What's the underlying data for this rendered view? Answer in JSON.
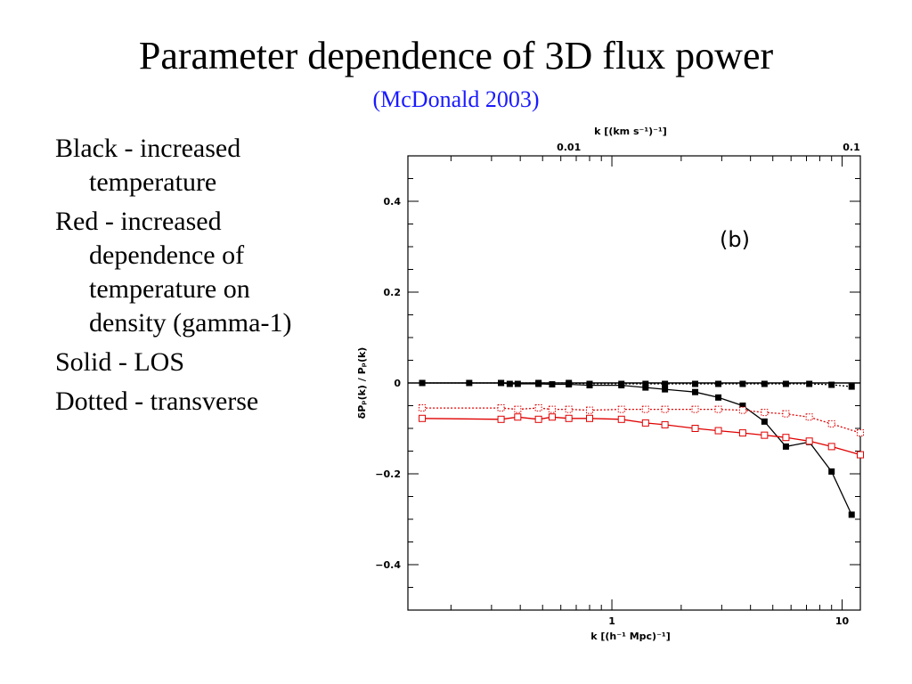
{
  "slide": {
    "title": "Parameter dependence of 3D flux power",
    "subtitle": "(McDonald 2003)"
  },
  "bullets": [
    "Black - increased temperature",
    "Red - increased dependence of temperature on density (gamma-1)",
    "Solid - LOS",
    "Dotted - transverse"
  ],
  "colors": {
    "black_series": "#000000",
    "red_series": "#e00000",
    "subtitle": "#1a1aff"
  },
  "chart_data": {
    "type": "line",
    "panel_label": "(b)",
    "xlabel": "k [(h⁻¹ Mpc)⁻¹]",
    "top_xlabel": "k [(km s⁻¹)⁻¹]",
    "ylabel": "δPₚ(k) / Pₚ(k)",
    "xscale": "log",
    "xlim": [
      0.13,
      12
    ],
    "ylim": [
      -0.5,
      0.5
    ],
    "x_tick_labels": [
      "1",
      "10"
    ],
    "top_tick_labels": [
      "0.01",
      "0.1"
    ],
    "y_tick_labels": [
      "0.4",
      "0.2",
      "0",
      "−0.2",
      "−0.4"
    ],
    "series": [
      {
        "color": "black",
        "style": "solid",
        "marker": "filled-square",
        "x": [
          0.15,
          0.24,
          0.33,
          0.36,
          0.39,
          0.48,
          0.55,
          0.65,
          0.8,
          1.1,
          1.4,
          1.7,
          2.3,
          2.9,
          3.7,
          4.6,
          5.7,
          7.2,
          9.0,
          11.0
        ],
        "y": [
          0.0,
          0.0,
          0.0,
          -0.002,
          -0.002,
          -0.002,
          -0.003,
          -0.003,
          -0.005,
          -0.005,
          -0.01,
          -0.014,
          -0.02,
          -0.032,
          -0.05,
          -0.085,
          -0.14,
          -0.13,
          -0.195,
          -0.29
        ]
      },
      {
        "color": "black",
        "style": "dotted",
        "marker": "filled-square",
        "x": [
          0.15,
          0.33,
          0.48,
          0.65,
          0.8,
          1.1,
          1.4,
          1.7,
          2.3,
          2.9,
          3.7,
          4.6,
          5.7,
          7.2,
          9.0,
          11.0
        ],
        "y": [
          0.0,
          0.0,
          0.0,
          0.0,
          -0.002,
          -0.002,
          -0.002,
          -0.002,
          -0.002,
          -0.002,
          -0.002,
          -0.002,
          -0.002,
          -0.002,
          -0.004,
          -0.008
        ]
      },
      {
        "color": "red",
        "style": "solid",
        "marker": "open-square",
        "x": [
          0.15,
          0.33,
          0.39,
          0.48,
          0.55,
          0.65,
          0.8,
          1.1,
          1.4,
          1.7,
          2.3,
          2.9,
          3.7,
          4.6,
          5.7,
          7.2,
          9.0,
          12.0
        ],
        "y": [
          -0.078,
          -0.08,
          -0.075,
          -0.08,
          -0.075,
          -0.078,
          -0.078,
          -0.08,
          -0.088,
          -0.092,
          -0.1,
          -0.105,
          -0.11,
          -0.115,
          -0.12,
          -0.128,
          -0.14,
          -0.158
        ]
      },
      {
        "color": "red",
        "style": "dotted",
        "marker": "open-square",
        "x": [
          0.15,
          0.33,
          0.39,
          0.48,
          0.55,
          0.65,
          0.8,
          1.1,
          1.4,
          1.7,
          2.3,
          2.9,
          3.7,
          4.6,
          5.7,
          7.2,
          9.0,
          12.0
        ],
        "y": [
          -0.055,
          -0.055,
          -0.058,
          -0.055,
          -0.058,
          -0.058,
          -0.06,
          -0.058,
          -0.058,
          -0.058,
          -0.058,
          -0.058,
          -0.06,
          -0.065,
          -0.068,
          -0.075,
          -0.09,
          -0.11
        ]
      }
    ]
  }
}
